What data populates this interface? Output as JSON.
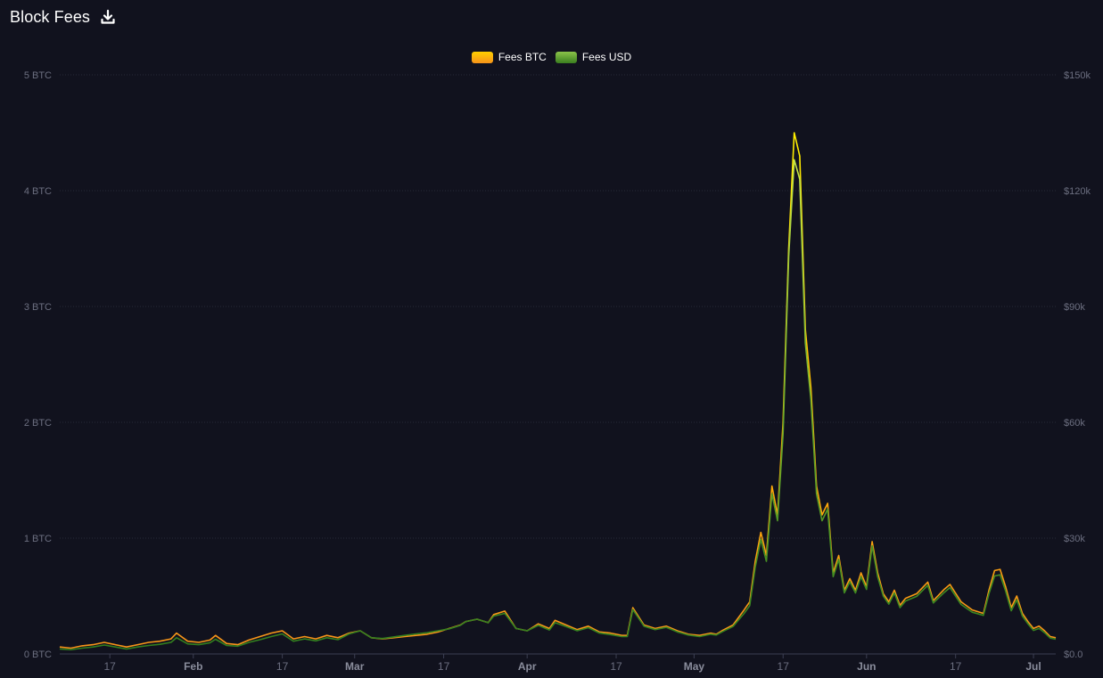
{
  "header": {
    "title": "Block Fees",
    "download_icon": "download-icon"
  },
  "colors": {
    "background": "#11121e",
    "grid": "#262938",
    "axis_text": "#6c6f80",
    "btc_series": "#f7931a",
    "btc_series_top": "#ffd000",
    "usd_series": "#3a8f1f",
    "usd_series_top": "#8bc34a"
  },
  "chart_data": {
    "type": "line",
    "title": "Block Fees",
    "legend_position": "top-center",
    "grid": true,
    "y_left": {
      "ylim": [
        0,
        5
      ],
      "ticks": [
        0,
        1,
        2,
        3,
        4,
        5
      ],
      "tick_labels": [
        "0 BTC",
        "1 BTC",
        "2 BTC",
        "3 BTC",
        "4 BTC",
        "5 BTC"
      ]
    },
    "y_right": {
      "ylim": [
        0,
        150000
      ],
      "ticks": [
        0,
        30000,
        60000,
        90000,
        120000,
        150000
      ],
      "tick_labels": [
        "$0.0",
        "$30k",
        "$60k",
        "$90k",
        "$120k",
        "$150k"
      ]
    },
    "x_axis": {
      "start": "2024-01-08",
      "end": "2024-07-05",
      "tick_dates": [
        "2024-01-17",
        "2024-02-01",
        "2024-02-17",
        "2024-03-01",
        "2024-03-17",
        "2024-04-01",
        "2024-04-17",
        "2024-05-01",
        "2024-05-17",
        "2024-06-01",
        "2024-06-17",
        "2024-07-01"
      ],
      "tick_labels": [
        "17",
        "Feb",
        "17",
        "Mar",
        "17",
        "Apr",
        "17",
        "May",
        "17",
        "Jun",
        "17",
        "Jul"
      ],
      "month_ticks": [
        "Feb",
        "Mar",
        "Apr",
        "May",
        "Jun",
        "Jul"
      ]
    },
    "series": [
      {
        "name": "Fees BTC",
        "axis": "left",
        "points": [
          [
            "2024-01-08",
            0.06
          ],
          [
            "2024-01-10",
            0.05
          ],
          [
            "2024-01-12",
            0.07
          ],
          [
            "2024-01-14",
            0.08
          ],
          [
            "2024-01-16",
            0.1
          ],
          [
            "2024-01-18",
            0.08
          ],
          [
            "2024-01-20",
            0.06
          ],
          [
            "2024-01-22",
            0.08
          ],
          [
            "2024-01-24",
            0.1
          ],
          [
            "2024-01-26",
            0.11
          ],
          [
            "2024-01-28",
            0.13
          ],
          [
            "2024-01-29",
            0.18
          ],
          [
            "2024-01-31",
            0.11
          ],
          [
            "2024-02-02",
            0.1
          ],
          [
            "2024-02-04",
            0.12
          ],
          [
            "2024-02-05",
            0.16
          ],
          [
            "2024-02-07",
            0.09
          ],
          [
            "2024-02-09",
            0.08
          ],
          [
            "2024-02-11",
            0.12
          ],
          [
            "2024-02-13",
            0.15
          ],
          [
            "2024-02-15",
            0.18
          ],
          [
            "2024-02-17",
            0.2
          ],
          [
            "2024-02-19",
            0.13
          ],
          [
            "2024-02-21",
            0.15
          ],
          [
            "2024-02-23",
            0.13
          ],
          [
            "2024-02-25",
            0.16
          ],
          [
            "2024-02-27",
            0.14
          ],
          [
            "2024-02-29",
            0.18
          ],
          [
            "2024-03-02",
            0.2
          ],
          [
            "2024-03-04",
            0.14
          ],
          [
            "2024-03-06",
            0.13
          ],
          [
            "2024-03-08",
            0.14
          ],
          [
            "2024-03-10",
            0.15
          ],
          [
            "2024-03-12",
            0.16
          ],
          [
            "2024-03-14",
            0.17
          ],
          [
            "2024-03-16",
            0.19
          ],
          [
            "2024-03-18",
            0.22
          ],
          [
            "2024-03-20",
            0.25
          ],
          [
            "2024-03-21",
            0.28
          ],
          [
            "2024-03-23",
            0.3
          ],
          [
            "2024-03-25",
            0.27
          ],
          [
            "2024-03-26",
            0.34
          ],
          [
            "2024-03-28",
            0.37
          ],
          [
            "2024-03-30",
            0.22
          ],
          [
            "2024-04-01",
            0.2
          ],
          [
            "2024-04-03",
            0.26
          ],
          [
            "2024-04-05",
            0.22
          ],
          [
            "2024-04-06",
            0.29
          ],
          [
            "2024-04-08",
            0.25
          ],
          [
            "2024-04-10",
            0.21
          ],
          [
            "2024-04-12",
            0.24
          ],
          [
            "2024-04-14",
            0.19
          ],
          [
            "2024-04-16",
            0.18
          ],
          [
            "2024-04-18",
            0.16
          ],
          [
            "2024-04-19",
            0.16
          ],
          [
            "2024-04-20",
            0.4
          ],
          [
            "2024-04-22",
            0.25
          ],
          [
            "2024-04-24",
            0.22
          ],
          [
            "2024-04-26",
            0.24
          ],
          [
            "2024-04-28",
            0.2
          ],
          [
            "2024-04-30",
            0.17
          ],
          [
            "2024-05-02",
            0.16
          ],
          [
            "2024-05-04",
            0.18
          ],
          [
            "2024-05-05",
            0.17
          ],
          [
            "2024-05-06",
            0.2
          ],
          [
            "2024-05-08",
            0.25
          ],
          [
            "2024-05-10",
            0.38
          ],
          [
            "2024-05-11",
            0.45
          ],
          [
            "2024-05-12",
            0.8
          ],
          [
            "2024-05-13",
            1.05
          ],
          [
            "2024-05-14",
            0.85
          ],
          [
            "2024-05-15",
            1.45
          ],
          [
            "2024-05-16",
            1.2
          ],
          [
            "2024-05-17",
            2.0
          ],
          [
            "2024-05-18",
            3.5
          ],
          [
            "2024-05-19",
            4.5
          ],
          [
            "2024-05-20",
            4.3
          ],
          [
            "2024-05-21",
            2.8
          ],
          [
            "2024-05-22",
            2.3
          ],
          [
            "2024-05-23",
            1.45
          ],
          [
            "2024-05-24",
            1.2
          ],
          [
            "2024-05-25",
            1.3
          ],
          [
            "2024-05-26",
            0.7
          ],
          [
            "2024-05-27",
            0.85
          ],
          [
            "2024-05-28",
            0.55
          ],
          [
            "2024-05-29",
            0.65
          ],
          [
            "2024-05-30",
            0.55
          ],
          [
            "2024-05-31",
            0.7
          ],
          [
            "2024-06-01",
            0.58
          ],
          [
            "2024-06-02",
            0.97
          ],
          [
            "2024-06-03",
            0.7
          ],
          [
            "2024-06-04",
            0.52
          ],
          [
            "2024-06-05",
            0.45
          ],
          [
            "2024-06-06",
            0.55
          ],
          [
            "2024-06-07",
            0.42
          ],
          [
            "2024-06-08",
            0.48
          ],
          [
            "2024-06-10",
            0.52
          ],
          [
            "2024-06-12",
            0.62
          ],
          [
            "2024-06-13",
            0.46
          ],
          [
            "2024-06-15",
            0.56
          ],
          [
            "2024-06-16",
            0.6
          ],
          [
            "2024-06-18",
            0.45
          ],
          [
            "2024-06-20",
            0.38
          ],
          [
            "2024-06-22",
            0.35
          ],
          [
            "2024-06-23",
            0.55
          ],
          [
            "2024-06-24",
            0.72
          ],
          [
            "2024-06-25",
            0.73
          ],
          [
            "2024-06-26",
            0.58
          ],
          [
            "2024-06-27",
            0.4
          ],
          [
            "2024-06-28",
            0.5
          ],
          [
            "2024-06-29",
            0.35
          ],
          [
            "2024-06-30",
            0.28
          ],
          [
            "2024-07-01",
            0.22
          ],
          [
            "2024-07-02",
            0.24
          ],
          [
            "2024-07-03",
            0.2
          ],
          [
            "2024-07-04",
            0.15
          ],
          [
            "2024-07-05",
            0.14
          ]
        ]
      },
      {
        "name": "Fees USD",
        "axis": "right",
        "points": [
          [
            "2024-01-08",
            1300
          ],
          [
            "2024-01-10",
            1100
          ],
          [
            "2024-01-12",
            1500
          ],
          [
            "2024-01-14",
            1800
          ],
          [
            "2024-01-16",
            2300
          ],
          [
            "2024-01-18",
            1800
          ],
          [
            "2024-01-20",
            1300
          ],
          [
            "2024-01-22",
            1800
          ],
          [
            "2024-01-24",
            2200
          ],
          [
            "2024-01-26",
            2500
          ],
          [
            "2024-01-28",
            3000
          ],
          [
            "2024-01-29",
            4200
          ],
          [
            "2024-01-31",
            2600
          ],
          [
            "2024-02-02",
            2400
          ],
          [
            "2024-02-04",
            2900
          ],
          [
            "2024-02-05",
            3800
          ],
          [
            "2024-02-07",
            2200
          ],
          [
            "2024-02-09",
            2000
          ],
          [
            "2024-02-11",
            3000
          ],
          [
            "2024-02-13",
            3700
          ],
          [
            "2024-02-15",
            4500
          ],
          [
            "2024-02-17",
            5200
          ],
          [
            "2024-02-19",
            3300
          ],
          [
            "2024-02-21",
            3900
          ],
          [
            "2024-02-23",
            3400
          ],
          [
            "2024-02-25",
            4200
          ],
          [
            "2024-02-27",
            3700
          ],
          [
            "2024-02-29",
            5200
          ],
          [
            "2024-03-02",
            6000
          ],
          [
            "2024-03-04",
            4200
          ],
          [
            "2024-03-06",
            4000
          ],
          [
            "2024-03-08",
            4400
          ],
          [
            "2024-03-10",
            4800
          ],
          [
            "2024-03-12",
            5200
          ],
          [
            "2024-03-14",
            5500
          ],
          [
            "2024-03-16",
            6000
          ],
          [
            "2024-03-18",
            6500
          ],
          [
            "2024-03-20",
            7400
          ],
          [
            "2024-03-21",
            8400
          ],
          [
            "2024-03-23",
            9000
          ],
          [
            "2024-03-25",
            8100
          ],
          [
            "2024-03-26",
            9800
          ],
          [
            "2024-03-28",
            10500
          ],
          [
            "2024-03-30",
            6600
          ],
          [
            "2024-04-01",
            6000
          ],
          [
            "2024-04-03",
            7400
          ],
          [
            "2024-04-05",
            6200
          ],
          [
            "2024-04-06",
            8100
          ],
          [
            "2024-04-08",
            7100
          ],
          [
            "2024-04-10",
            6000
          ],
          [
            "2024-04-12",
            6800
          ],
          [
            "2024-04-14",
            5400
          ],
          [
            "2024-04-16",
            5000
          ],
          [
            "2024-04-18",
            4500
          ],
          [
            "2024-04-19",
            4500
          ],
          [
            "2024-04-20",
            11500
          ],
          [
            "2024-04-22",
            7200
          ],
          [
            "2024-04-24",
            6300
          ],
          [
            "2024-04-26",
            6900
          ],
          [
            "2024-04-28",
            5700
          ],
          [
            "2024-04-30",
            4900
          ],
          [
            "2024-05-02",
            4500
          ],
          [
            "2024-05-04",
            5100
          ],
          [
            "2024-05-05",
            4900
          ],
          [
            "2024-05-06",
            5700
          ],
          [
            "2024-05-08",
            7100
          ],
          [
            "2024-05-10",
            10500
          ],
          [
            "2024-05-11",
            12500
          ],
          [
            "2024-05-12",
            22500
          ],
          [
            "2024-05-13",
            29700
          ],
          [
            "2024-05-14",
            24000
          ],
          [
            "2024-05-15",
            41500
          ],
          [
            "2024-05-16",
            34500
          ],
          [
            "2024-05-17",
            57000
          ],
          [
            "2024-05-18",
            103000
          ],
          [
            "2024-05-19",
            128000
          ],
          [
            "2024-05-20",
            123000
          ],
          [
            "2024-05-21",
            80500
          ],
          [
            "2024-05-22",
            66000
          ],
          [
            "2024-05-23",
            41500
          ],
          [
            "2024-05-24",
            34500
          ],
          [
            "2024-05-25",
            37500
          ],
          [
            "2024-05-26",
            20000
          ],
          [
            "2024-05-27",
            24500
          ],
          [
            "2024-05-28",
            15800
          ],
          [
            "2024-05-29",
            18700
          ],
          [
            "2024-05-30",
            15800
          ],
          [
            "2024-05-31",
            20000
          ],
          [
            "2024-06-01",
            16700
          ],
          [
            "2024-06-02",
            28000
          ],
          [
            "2024-06-03",
            20000
          ],
          [
            "2024-06-04",
            15000
          ],
          [
            "2024-06-05",
            12900
          ],
          [
            "2024-06-06",
            15800
          ],
          [
            "2024-06-07",
            12000
          ],
          [
            "2024-06-08",
            13700
          ],
          [
            "2024-06-10",
            14900
          ],
          [
            "2024-06-12",
            17800
          ],
          [
            "2024-06-13",
            13200
          ],
          [
            "2024-06-15",
            16000
          ],
          [
            "2024-06-16",
            17200
          ],
          [
            "2024-06-18",
            12800
          ],
          [
            "2024-06-20",
            10800
          ],
          [
            "2024-06-22",
            10000
          ],
          [
            "2024-06-23",
            15600
          ],
          [
            "2024-06-24",
            20200
          ],
          [
            "2024-06-25",
            20500
          ],
          [
            "2024-06-26",
            16300
          ],
          [
            "2024-06-27",
            11200
          ],
          [
            "2024-06-28",
            14000
          ],
          [
            "2024-06-29",
            9800
          ],
          [
            "2024-06-30",
            7800
          ],
          [
            "2024-07-01",
            6100
          ],
          [
            "2024-07-02",
            6600
          ],
          [
            "2024-07-03",
            5500
          ],
          [
            "2024-07-04",
            4100
          ],
          [
            "2024-07-05",
            3800
          ]
        ]
      }
    ]
  }
}
